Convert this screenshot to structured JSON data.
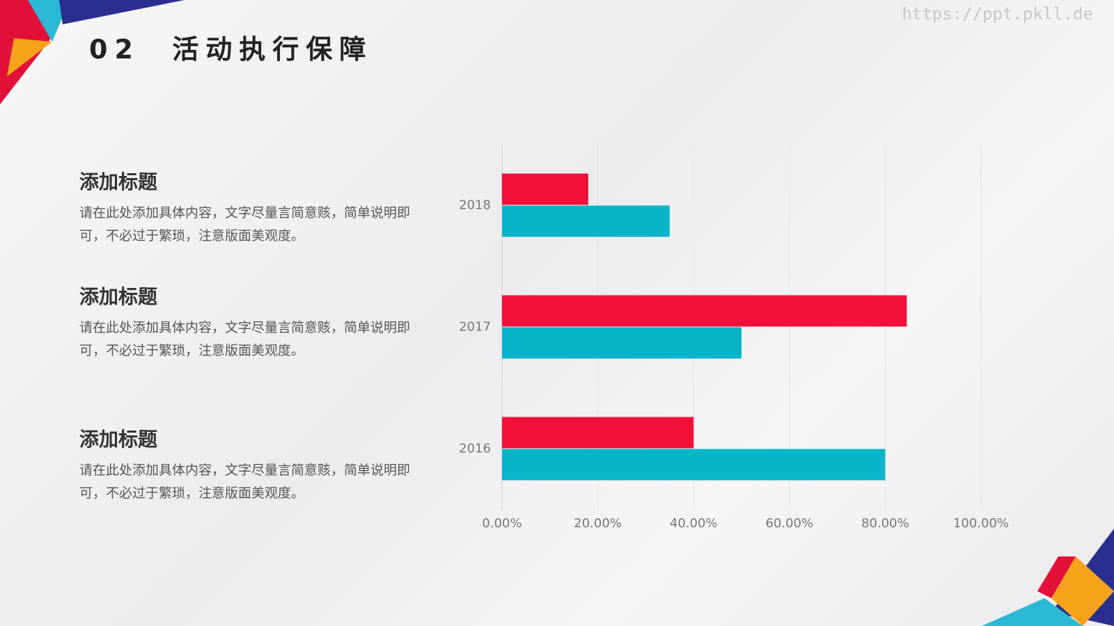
{
  "header": {
    "title": "02  活动执行保障",
    "watermark": "https://ppt.pkll.de"
  },
  "blocks": [
    {
      "heading": "添加标题",
      "body": "请在此处添加具体内容，文字尽量言简意赅，简单说明即可，不必过于繁琐，注意版面美观度。"
    },
    {
      "heading": "添加标题",
      "body": "请在此处添加具体内容，文字尽量言简意赅，简单说明即可，不必过于繁琐，注意版面美观度。"
    },
    {
      "heading": "添加标题",
      "body": "请在此处添加具体内容，文字尽量言简意赅，简单说明即可，不必过于繁琐，注意版面美观度。"
    }
  ],
  "chart_data": {
    "type": "barh",
    "categories": [
      "2018",
      "2017",
      "2016"
    ],
    "series": [
      {
        "color": "#f0103a",
        "values": [
          18,
          84.5,
          40
        ]
      },
      {
        "color": "#08b5c8",
        "values": [
          35,
          50,
          80
        ]
      }
    ],
    "xlim": [
      0,
      100
    ],
    "xticks": [
      {
        "value": 0,
        "label": "0.00%"
      },
      {
        "value": 20,
        "label": "20.00%"
      },
      {
        "value": 40,
        "label": "40.00%"
      },
      {
        "value": 60,
        "label": "60.00%"
      },
      {
        "value": 80,
        "label": "80.00%"
      },
      {
        "value": 100,
        "label": "100.00%"
      }
    ],
    "grid": true
  }
}
